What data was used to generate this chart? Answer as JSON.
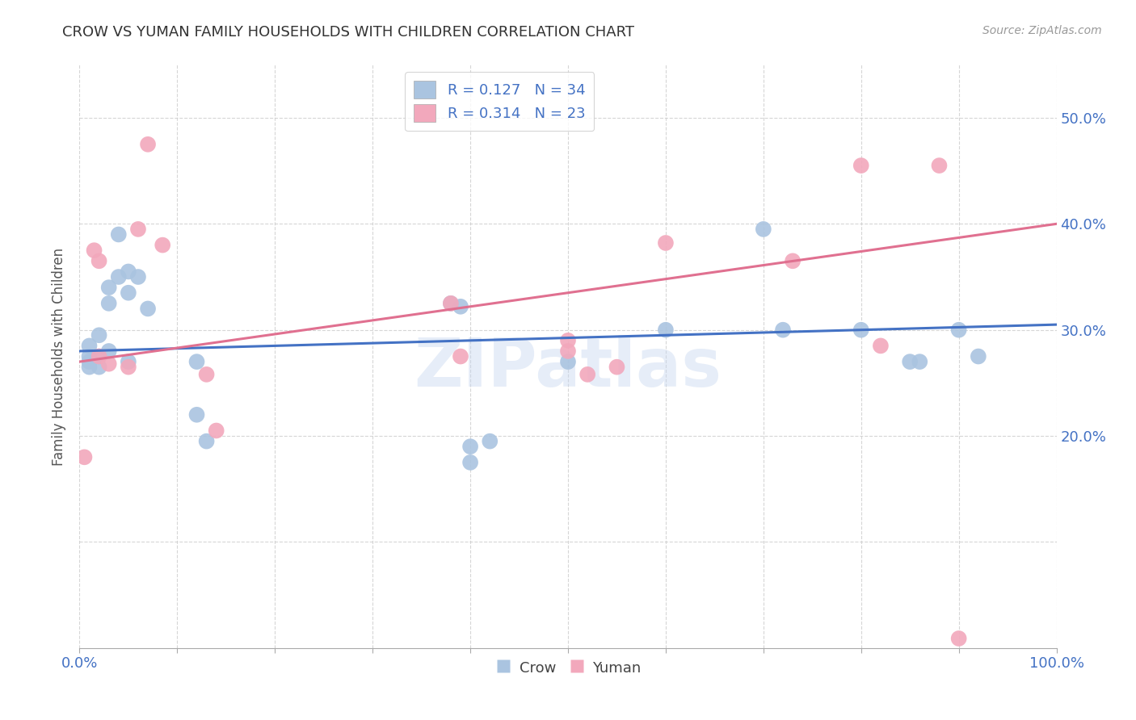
{
  "title": "CROW VS YUMAN FAMILY HOUSEHOLDS WITH CHILDREN CORRELATION CHART",
  "source": "Source: ZipAtlas.com",
  "ylabel": "Family Households with Children",
  "crow_color": "#aac4e0",
  "yuman_color": "#f2a8bc",
  "crow_line_color": "#4472c4",
  "yuman_line_color": "#e07090",
  "crow_R": 0.127,
  "crow_N": 34,
  "yuman_R": 0.314,
  "yuman_N": 23,
  "crow_x": [
    0.01,
    0.01,
    0.01,
    0.01,
    0.02,
    0.02,
    0.02,
    0.03,
    0.03,
    0.03,
    0.04,
    0.04,
    0.05,
    0.05,
    0.05,
    0.06,
    0.07,
    0.12,
    0.12,
    0.13,
    0.38,
    0.39,
    0.42,
    0.5,
    0.6,
    0.7,
    0.72,
    0.8,
    0.85,
    0.86,
    0.9,
    0.92,
    0.4,
    0.4
  ],
  "crow_y": [
    0.285,
    0.275,
    0.27,
    0.265,
    0.295,
    0.275,
    0.265,
    0.34,
    0.325,
    0.28,
    0.35,
    0.39,
    0.355,
    0.335,
    0.27,
    0.35,
    0.32,
    0.27,
    0.22,
    0.195,
    0.325,
    0.322,
    0.195,
    0.27,
    0.3,
    0.395,
    0.3,
    0.3,
    0.27,
    0.27,
    0.3,
    0.275,
    0.19,
    0.175
  ],
  "yuman_x": [
    0.005,
    0.015,
    0.02,
    0.02,
    0.03,
    0.05,
    0.06,
    0.07,
    0.085,
    0.13,
    0.14,
    0.38,
    0.39,
    0.5,
    0.52,
    0.6,
    0.73,
    0.8,
    0.82,
    0.88,
    0.9,
    0.5,
    0.55
  ],
  "yuman_y": [
    0.18,
    0.375,
    0.365,
    0.275,
    0.268,
    0.265,
    0.395,
    0.475,
    0.38,
    0.258,
    0.205,
    0.325,
    0.275,
    0.29,
    0.258,
    0.382,
    0.365,
    0.455,
    0.285,
    0.455,
    0.009,
    0.28,
    0.265
  ],
  "watermark": "ZIPatlas",
  "background_color": "#ffffff",
  "grid_color": "#cccccc",
  "xlim": [
    0.0,
    1.0
  ],
  "ylim": [
    0.0,
    0.55
  ],
  "xtick_positions": [
    0.0,
    0.1,
    0.2,
    0.3,
    0.4,
    0.5,
    0.6,
    0.7,
    0.8,
    0.9,
    1.0
  ],
  "ytick_positions": [
    0.1,
    0.2,
    0.3,
    0.4,
    0.5
  ]
}
